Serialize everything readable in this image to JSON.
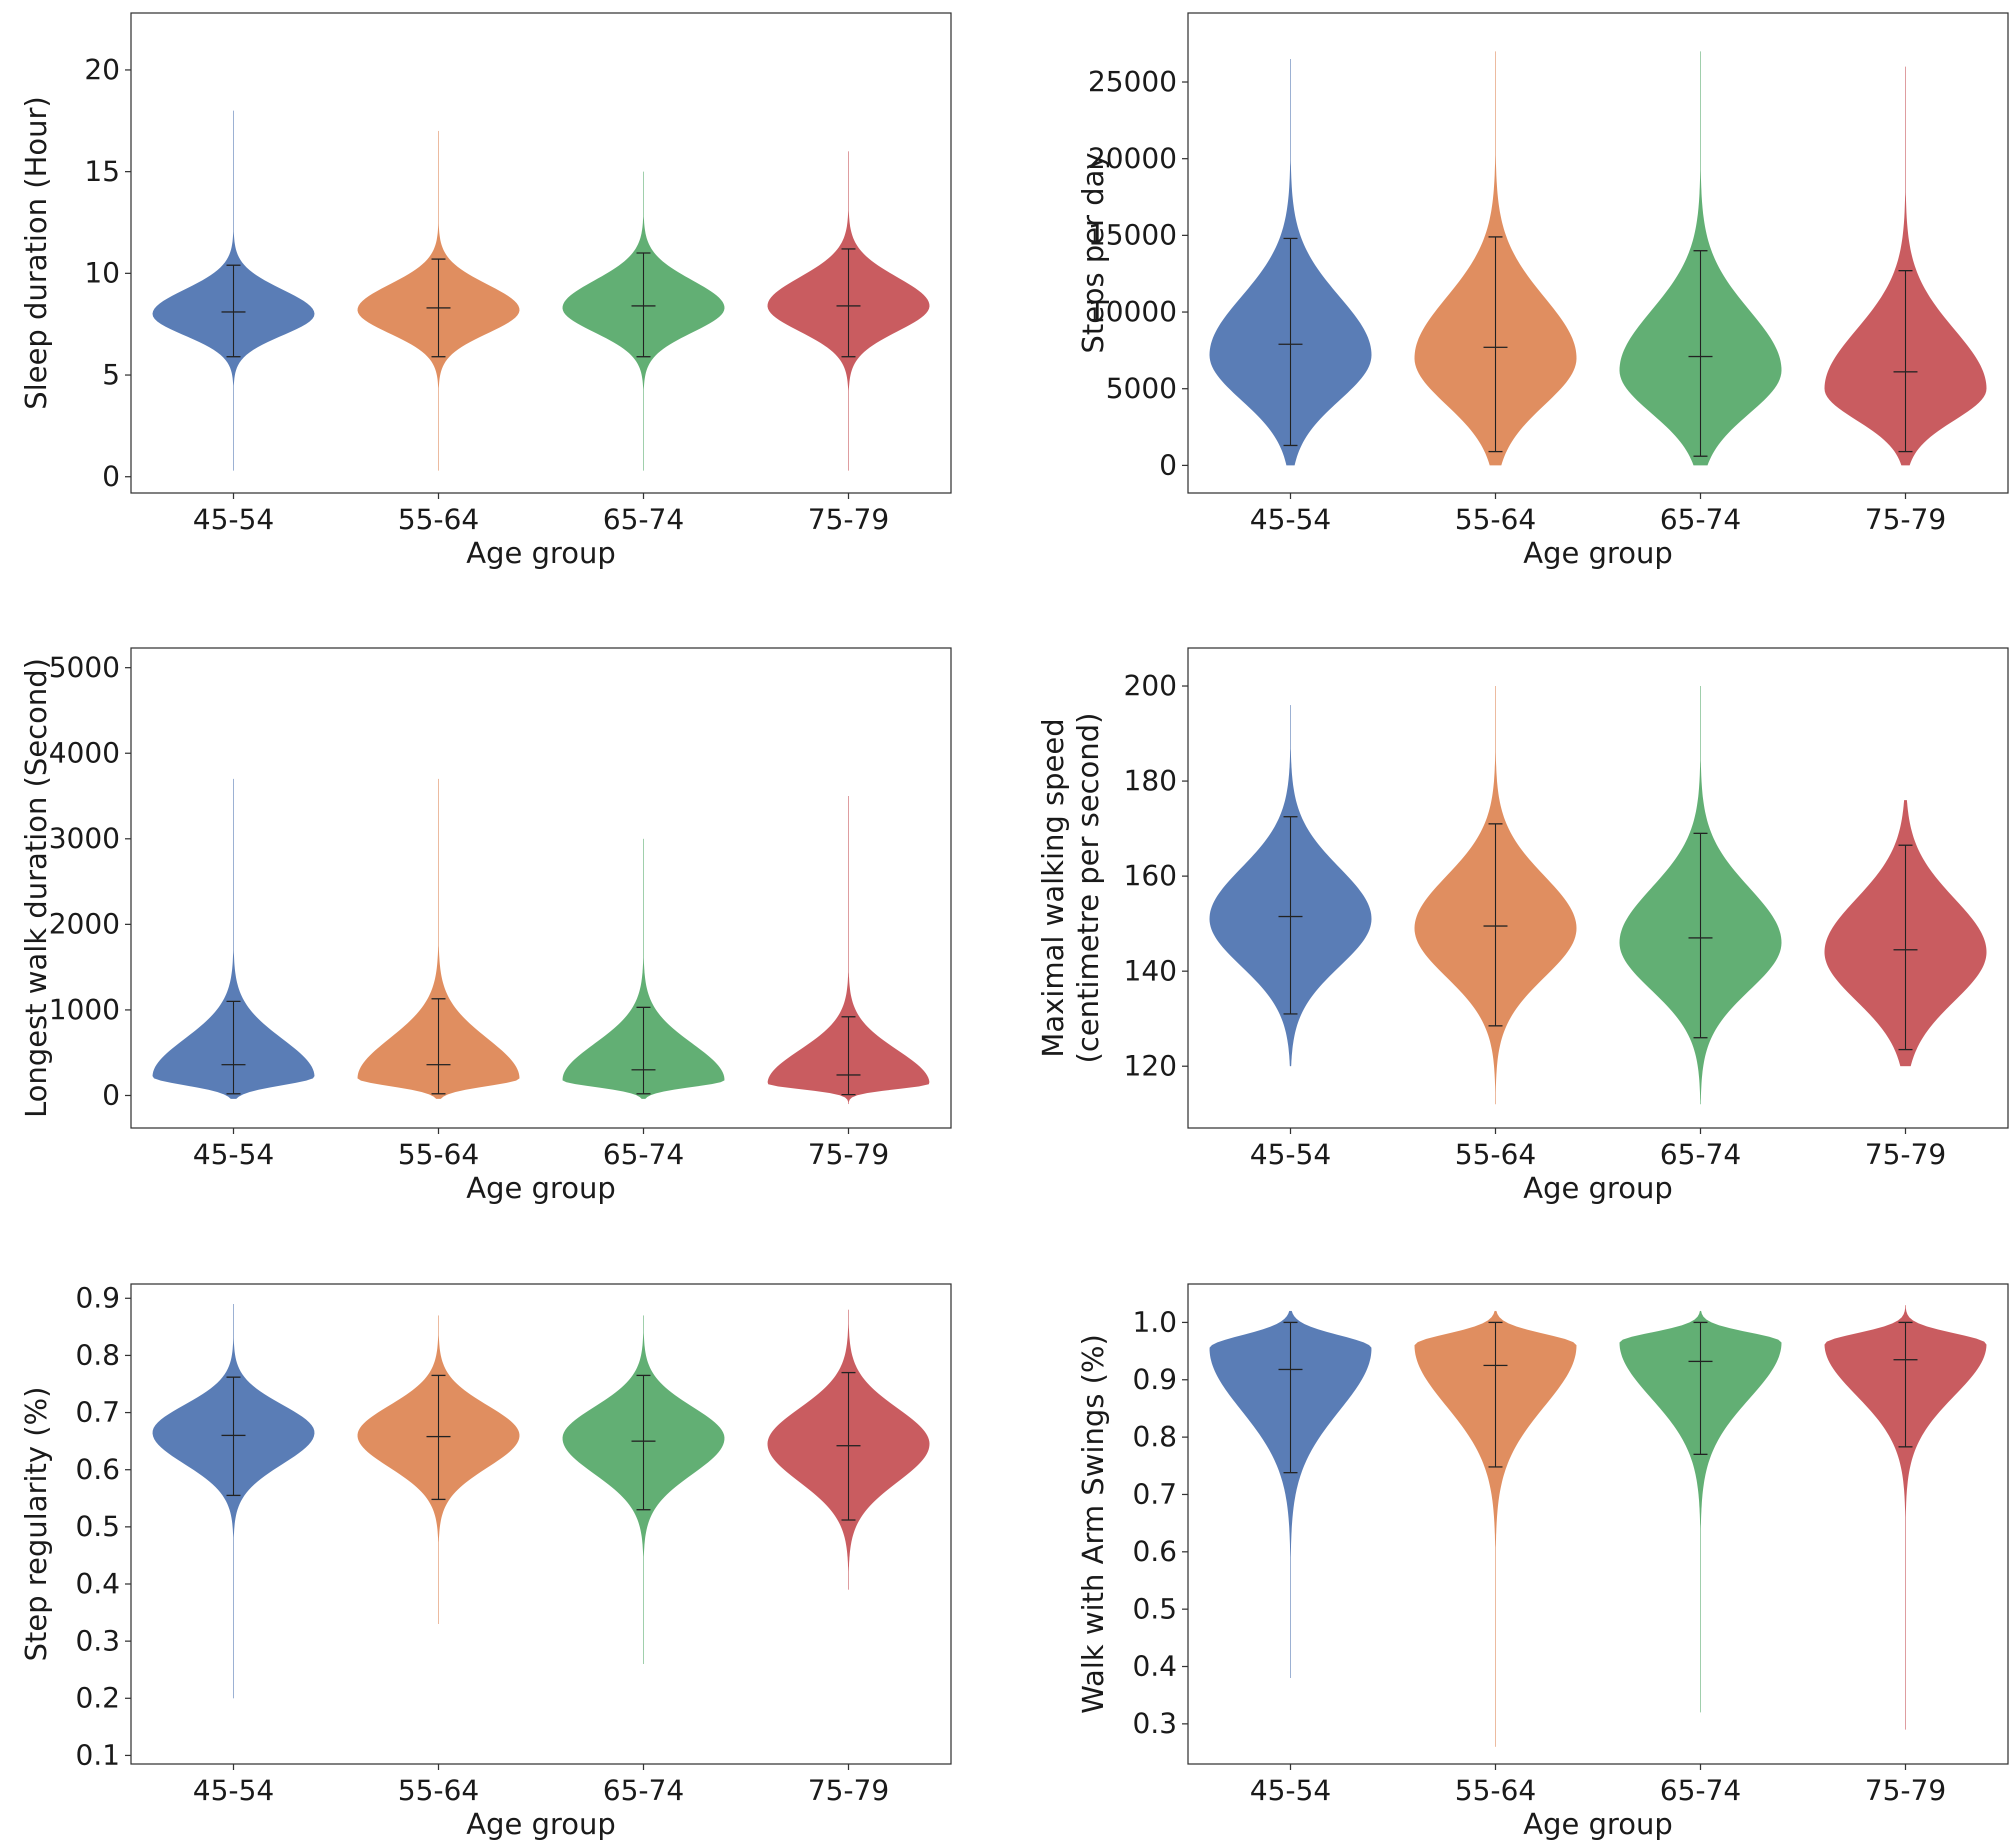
{
  "figure": {
    "layout": "3 rows x 2 columns violin plots"
  },
  "colors": [
    "#4c72b0",
    "#dd8452",
    "#55a868",
    "#c44e52"
  ],
  "chart_data": [
    {
      "id": "sleep",
      "type": "violin",
      "xlabel": "Age group",
      "ylabel": [
        "Sleep duration (Hour)"
      ],
      "categories": [
        "45-54",
        "55-64",
        "65-74",
        "75-79"
      ],
      "ylim": [
        -0.8,
        22.8
      ],
      "yticks": [
        0,
        5,
        10,
        15,
        20
      ],
      "tick_labels": [
        "0",
        "5",
        "10",
        "15",
        "20"
      ],
      "series": [
        {
          "name": "45-54",
          "median": 8.1,
          "lower": 5.9,
          "upper": 10.4,
          "mode": 8.0,
          "tail_low": 0.3,
          "tail_high": 18
        },
        {
          "name": "55-64",
          "median": 8.3,
          "lower": 5.9,
          "upper": 10.7,
          "mode": 8.2,
          "tail_low": 0.3,
          "tail_high": 17
        },
        {
          "name": "65-74",
          "median": 8.4,
          "lower": 5.9,
          "upper": 11.0,
          "mode": 8.3,
          "tail_low": 0.3,
          "tail_high": 15
        },
        {
          "name": "75-79",
          "median": 8.4,
          "lower": 5.9,
          "upper": 11.2,
          "mode": 8.4,
          "tail_low": 0.3,
          "tail_high": 16
        }
      ]
    },
    {
      "id": "steps",
      "type": "violin",
      "xlabel": "Age group",
      "ylabel": [
        "Steps per day"
      ],
      "categories": [
        "45-54",
        "55-64",
        "65-74",
        "75-79"
      ],
      "ylim": [
        -1800,
        29500
      ],
      "yticks": [
        0,
        5000,
        10000,
        15000,
        20000,
        25000
      ],
      "tick_labels": [
        "0",
        "5000",
        "10000",
        "15000",
        "20000",
        "25000"
      ],
      "series": [
        {
          "name": "45-54",
          "median": 7900,
          "lower": 1300,
          "upper": 14800,
          "mode": 7200,
          "tail_low": 0,
          "tail_high": 26500
        },
        {
          "name": "55-64",
          "median": 7700,
          "lower": 900,
          "upper": 14900,
          "mode": 7000,
          "tail_low": 0,
          "tail_high": 27000
        },
        {
          "name": "65-74",
          "median": 7100,
          "lower": 600,
          "upper": 14000,
          "mode": 6200,
          "tail_low": 0,
          "tail_high": 27000
        },
        {
          "name": "75-79",
          "median": 6100,
          "lower": 900,
          "upper": 12700,
          "mode": 5000,
          "tail_low": 0,
          "tail_high": 26000
        }
      ]
    },
    {
      "id": "longest-walk",
      "type": "violin",
      "xlabel": "Age group",
      "ylabel": [
        "Longest walk duration (Second)"
      ],
      "categories": [
        "45-54",
        "55-64",
        "65-74",
        "75-79"
      ],
      "ylim": [
        -380,
        5230
      ],
      "yticks": [
        0,
        1000,
        2000,
        3000,
        4000,
        5000
      ],
      "tick_labels": [
        "0",
        "1000",
        "2000",
        "3000",
        "4000",
        "5000"
      ],
      "series": [
        {
          "name": "45-54",
          "median": 360,
          "lower": 20,
          "upper": 1100,
          "mode": 220,
          "tail_low": -40,
          "tail_high": 3700
        },
        {
          "name": "55-64",
          "median": 360,
          "lower": 20,
          "upper": 1130,
          "mode": 200,
          "tail_low": -40,
          "tail_high": 3700
        },
        {
          "name": "65-74",
          "median": 300,
          "lower": 20,
          "upper": 1030,
          "mode": 180,
          "tail_low": -40,
          "tail_high": 3000
        },
        {
          "name": "75-79",
          "median": 240,
          "lower": 10,
          "upper": 920,
          "mode": 140,
          "tail_low": -100,
          "tail_high": 3500
        }
      ]
    },
    {
      "id": "walking-speed",
      "type": "violin",
      "xlabel": "Age group",
      "ylabel": [
        "Maximal walking speed",
        "(centimetre per second)"
      ],
      "categories": [
        "45-54",
        "55-64",
        "65-74",
        "75-79"
      ],
      "ylim": [
        107,
        208
      ],
      "yticks": [
        120,
        140,
        160,
        180,
        200
      ],
      "tick_labels": [
        "120",
        "140",
        "160",
        "180",
        "200"
      ],
      "series": [
        {
          "name": "45-54",
          "median": 151.5,
          "lower": 131,
          "upper": 172.5,
          "mode": 151,
          "tail_low": 120,
          "tail_high": 196
        },
        {
          "name": "55-64",
          "median": 149.5,
          "lower": 128.5,
          "upper": 171,
          "mode": 149,
          "tail_low": 112,
          "tail_high": 200
        },
        {
          "name": "65-74",
          "median": 147,
          "lower": 126,
          "upper": 169,
          "mode": 146,
          "tail_low": 112,
          "tail_high": 200
        },
        {
          "name": "75-79",
          "median": 144.5,
          "lower": 123.5,
          "upper": 166.5,
          "mode": 144,
          "tail_low": 120,
          "tail_high": 176
        }
      ]
    },
    {
      "id": "step-regularity",
      "type": "violin",
      "xlabel": "Age group",
      "ylabel": [
        "Step regularity (%)"
      ],
      "categories": [
        "45-54",
        "55-64",
        "65-74",
        "75-79"
      ],
      "ylim": [
        0.085,
        0.925
      ],
      "yticks": [
        0.1,
        0.2,
        0.3,
        0.4,
        0.5,
        0.6,
        0.7,
        0.8,
        0.9
      ],
      "tick_labels": [
        "0.1",
        "0.2",
        "0.3",
        "0.4",
        "0.5",
        "0.6",
        "0.7",
        "0.8",
        "0.9"
      ],
      "series": [
        {
          "name": "45-54",
          "median": 0.66,
          "lower": 0.555,
          "upper": 0.762,
          "mode": 0.665,
          "tail_low": 0.2,
          "tail_high": 0.89
        },
        {
          "name": "55-64",
          "median": 0.658,
          "lower": 0.548,
          "upper": 0.765,
          "mode": 0.66,
          "tail_low": 0.33,
          "tail_high": 0.87
        },
        {
          "name": "65-74",
          "median": 0.65,
          "lower": 0.53,
          "upper": 0.765,
          "mode": 0.655,
          "tail_low": 0.26,
          "tail_high": 0.87
        },
        {
          "name": "75-79",
          "median": 0.642,
          "lower": 0.512,
          "upper": 0.77,
          "mode": 0.645,
          "tail_low": 0.39,
          "tail_high": 0.88
        }
      ]
    },
    {
      "id": "arm-swings",
      "type": "violin",
      "xlabel": "Age group",
      "ylabel": [
        "Walk with Arm Swings (%)"
      ],
      "categories": [
        "45-54",
        "55-64",
        "65-74",
        "75-79"
      ],
      "ylim": [
        0.23,
        1.067
      ],
      "yticks": [
        0.3,
        0.4,
        0.5,
        0.6,
        0.7,
        0.8,
        0.9,
        1.0
      ],
      "tick_labels": [
        "0.3",
        "0.4",
        "0.5",
        "0.6",
        "0.7",
        "0.8",
        "0.9",
        "1.0"
      ],
      "series": [
        {
          "name": "45-54",
          "median": 0.918,
          "lower": 0.738,
          "upper": 1.0,
          "mode": 0.955,
          "tail_low": 0.38,
          "tail_high": 1.02
        },
        {
          "name": "55-64",
          "median": 0.925,
          "lower": 0.748,
          "upper": 1.0,
          "mode": 0.96,
          "tail_low": 0.26,
          "tail_high": 1.02
        },
        {
          "name": "65-74",
          "median": 0.932,
          "lower": 0.77,
          "upper": 1.0,
          "mode": 0.965,
          "tail_low": 0.32,
          "tail_high": 1.02
        },
        {
          "name": "75-79",
          "median": 0.935,
          "lower": 0.783,
          "upper": 1.0,
          "mode": 0.962,
          "tail_low": 0.29,
          "tail_high": 1.03
        }
      ]
    }
  ]
}
